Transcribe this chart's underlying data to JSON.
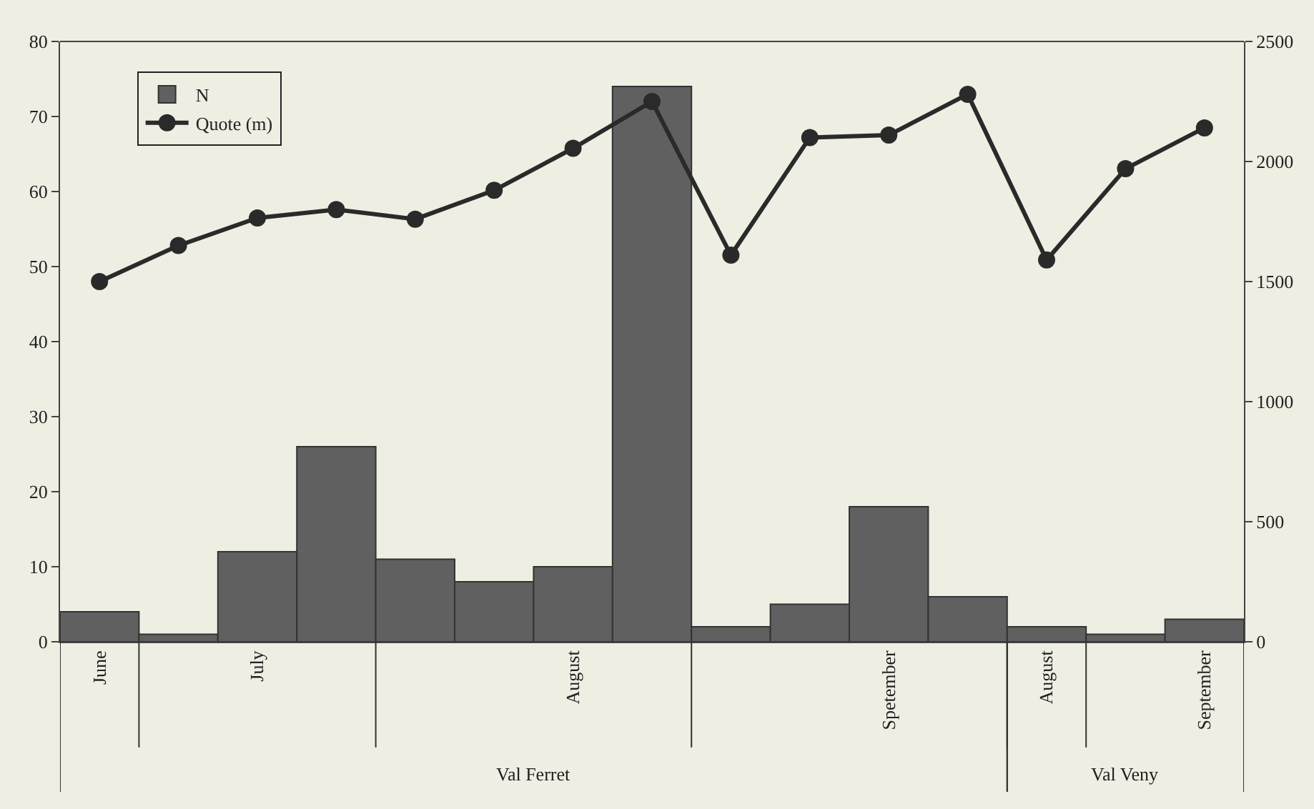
{
  "chart_data": {
    "type": "bar",
    "categories": [
      "June",
      null,
      "July",
      null,
      null,
      null,
      "August",
      null,
      null,
      null,
      "Spetember",
      null,
      "August",
      null,
      "September"
    ],
    "series": [
      {
        "name": "N",
        "color": "#606060",
        "values": [
          4,
          1,
          12,
          26,
          11,
          8,
          10,
          74,
          2,
          5,
          18,
          6,
          2,
          1,
          3
        ]
      },
      {
        "name": "Quote (m)",
        "type": "line",
        "axis": "y2",
        "color": "#2a2a2a",
        "values": [
          1500,
          1650,
          1765,
          1800,
          1760,
          1880,
          2055,
          2250,
          1610,
          2100,
          2110,
          2280,
          1590,
          1970,
          2140
        ]
      }
    ],
    "ylim": [
      0,
      80
    ],
    "yticks": [
      0,
      10,
      20,
      30,
      40,
      50,
      60,
      70,
      80
    ],
    "y2lim": [
      0,
      2500
    ],
    "y2ticks": [
      0,
      500,
      1000,
      1500,
      2000,
      2500
    ],
    "annotations": [
      "Val Ferret",
      "Val Veny"
    ],
    "legend": "top left",
    "marker": "circle",
    "grid": false
  }
}
